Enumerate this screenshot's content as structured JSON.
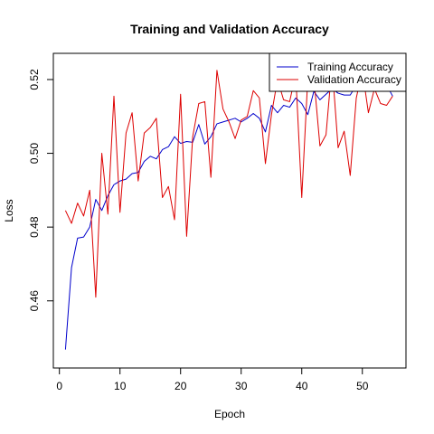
{
  "chart_data": {
    "type": "line",
    "title": "Training and Validation Accuracy",
    "xlabel": "Epoch",
    "ylabel": "Loss",
    "xlim": [
      -1,
      57.2
    ],
    "ylim": [
      0.4418,
      0.5271
    ],
    "xticks": [
      0,
      10,
      20,
      30,
      40,
      50
    ],
    "yticks": [
      0.46,
      0.48,
      0.5,
      0.52
    ],
    "ytick_labels": [
      "0.46",
      "0.48",
      "0.50",
      "0.52"
    ],
    "grid": false,
    "legend_position": "top-right",
    "x": [
      1,
      2,
      3,
      4,
      5,
      6,
      7,
      8,
      9,
      10,
      11,
      12,
      13,
      14,
      15,
      16,
      17,
      18,
      19,
      20,
      21,
      22,
      23,
      24,
      25,
      26,
      27,
      28,
      29,
      30,
      31,
      32,
      33,
      34,
      35,
      36,
      37,
      38,
      39,
      40,
      41,
      42,
      43,
      44,
      45,
      46,
      47,
      48,
      49,
      50,
      51,
      52,
      53,
      54,
      55
    ],
    "series": [
      {
        "name": "Training Accuracy",
        "color": "#0000cc",
        "values": [
          0.4468,
          0.469,
          0.477,
          0.4773,
          0.48,
          0.4875,
          0.4845,
          0.4885,
          0.4915,
          0.4925,
          0.493,
          0.4945,
          0.4948,
          0.4978,
          0.4992,
          0.4985,
          0.501,
          0.5018,
          0.5045,
          0.5027,
          0.5032,
          0.503,
          0.5078,
          0.5025,
          0.5045,
          0.508,
          0.5085,
          0.509,
          0.5095,
          0.5085,
          0.5095,
          0.5108,
          0.5095,
          0.5058,
          0.513,
          0.511,
          0.513,
          0.5125,
          0.515,
          0.5135,
          0.5105,
          0.5168,
          0.5145,
          0.516,
          0.5175,
          0.5163,
          0.5158,
          0.5158,
          0.5185,
          0.5175,
          0.5195,
          0.5225,
          0.5178,
          0.5185,
          0.5155
        ]
      },
      {
        "name": "Validation Accuracy",
        "color": "#dd0000",
        "values": [
          0.4845,
          0.481,
          0.4865,
          0.483,
          0.49,
          0.461,
          0.5,
          0.4835,
          0.5155,
          0.484,
          0.5055,
          0.511,
          0.4925,
          0.5055,
          0.507,
          0.5095,
          0.488,
          0.491,
          0.482,
          0.516,
          0.4775,
          0.5045,
          0.5135,
          0.514,
          0.4935,
          0.5225,
          0.512,
          0.5085,
          0.504,
          0.509,
          0.51,
          0.517,
          0.515,
          0.4972,
          0.5105,
          0.52,
          0.5145,
          0.514,
          0.5215,
          0.488,
          0.5205,
          0.5205,
          0.502,
          0.505,
          0.524,
          0.5015,
          0.506,
          0.494,
          0.515,
          0.5225,
          0.511,
          0.5175,
          0.5135,
          0.513,
          0.5155
        ]
      }
    ]
  }
}
